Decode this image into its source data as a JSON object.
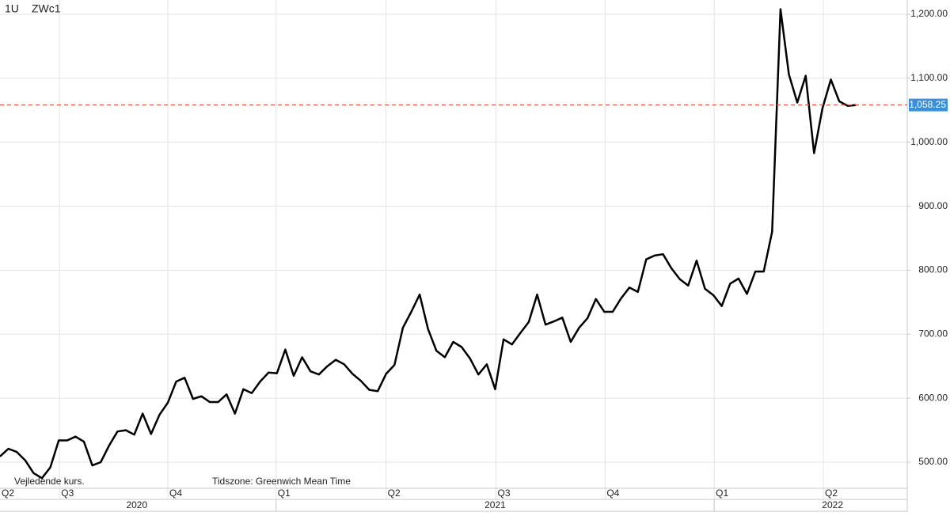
{
  "chart_data": {
    "type": "line",
    "resolution": "1U",
    "symbol": "ZWc1",
    "note": "Vejledende kurs.",
    "timezone": "Tidszone: Greenwich Mean Time",
    "series": [
      {
        "name": "ZWc1",
        "color": "#000000",
        "values": [
          509,
          521,
          516,
          503,
          483,
          475,
          492,
          534,
          534,
          540,
          532,
          495,
          500,
          526,
          548,
          550,
          543,
          576,
          544,
          574,
          593,
          626,
          632,
          599,
          603,
          594,
          594,
          606,
          576,
          614,
          608,
          626,
          640,
          639,
          676,
          635,
          664,
          642,
          637,
          650,
          660,
          653,
          638,
          627,
          613,
          611,
          638,
          652,
          710,
          735,
          762,
          708,
          674,
          664,
          688,
          680,
          662,
          637,
          653,
          614,
          692,
          684,
          702,
          719,
          762,
          715,
          720,
          726,
          688,
          710,
          725,
          755,
          735,
          735,
          756,
          773,
          766,
          817,
          823,
          825,
          803,
          786,
          776,
          815,
          771,
          761,
          744,
          779,
          787,
          763,
          798,
          798,
          860,
          1208,
          1106,
          1062,
          1104,
          983,
          1053,
          1098,
          1064,
          1057,
          1058
        ]
      }
    ],
    "last_price": {
      "value": 1058.25,
      "label": "1,058.25"
    },
    "last_price_color": "#e0604a",
    "ylim": [
      459.2,
      1222.3
    ],
    "yticks": [
      {
        "value": 500,
        "label": "500.00"
      },
      {
        "value": 600,
        "label": "600.00"
      },
      {
        "value": 700,
        "label": "700.00"
      },
      {
        "value": 800,
        "label": "800.00"
      },
      {
        "value": 900,
        "label": "900.00"
      },
      {
        "value": 1000,
        "label": "1,000.00"
      },
      {
        "value": 1100,
        "label": "1,100.00"
      },
      {
        "value": 1200,
        "label": "1,200.00"
      }
    ],
    "xlim": [
      0,
      108.1
    ],
    "xticks": [
      {
        "value": 0,
        "label": "Q2"
      },
      {
        "value": 7.1,
        "label": "Q3"
      },
      {
        "value": 20,
        "label": "Q4"
      },
      {
        "value": 32.9,
        "label": "Q1"
      },
      {
        "value": 46,
        "label": "Q2"
      },
      {
        "value": 59.1,
        "label": "Q3"
      },
      {
        "value": 72.1,
        "label": "Q4"
      },
      {
        "value": 85.1,
        "label": "Q1"
      },
      {
        "value": 98.1,
        "label": "Q2"
      }
    ],
    "years": [
      {
        "value": 16.3,
        "label": "2020"
      },
      {
        "value": 59,
        "label": "2021"
      },
      {
        "value": 99.2,
        "label": "2022"
      }
    ],
    "grid": true
  }
}
